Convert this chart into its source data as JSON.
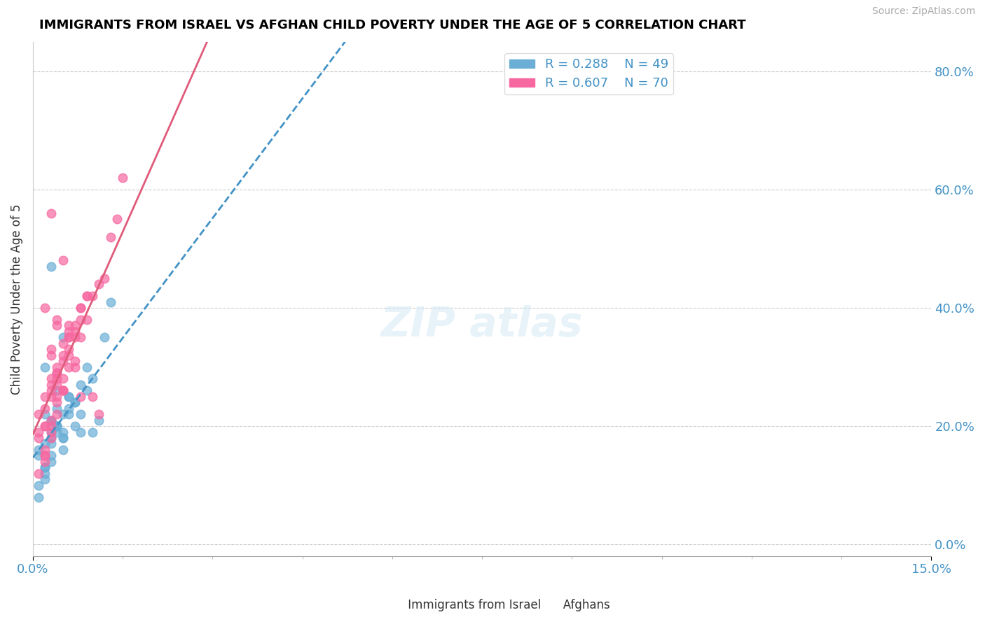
{
  "title": "IMMIGRANTS FROM ISRAEL VS AFGHAN CHILD POVERTY UNDER THE AGE OF 5 CORRELATION CHART",
  "source": "Source: ZipAtlas.com",
  "xlabel": "",
  "ylabel": "Child Poverty Under the Age of 5",
  "xlim": [
    0.0,
    0.15
  ],
  "ylim": [
    -0.02,
    0.85
  ],
  "yticks": [
    0.0,
    0.2,
    0.4,
    0.6,
    0.8
  ],
  "xticks": [
    0.0,
    0.15
  ],
  "legend_R_blue": "R = 0.288",
  "legend_N_blue": "N = 49",
  "legend_R_pink": "R = 0.607",
  "legend_N_pink": "N = 70",
  "blue_color": "#6baed6",
  "pink_color": "#f768a1",
  "blue_line_color": "#4292c6",
  "pink_line_color": "#e05a7a",
  "watermark": "ZIPatlas",
  "israel_x": [
    0.001,
    0.002,
    0.003,
    0.001,
    0.004,
    0.005,
    0.002,
    0.003,
    0.006,
    0.004,
    0.002,
    0.001,
    0.003,
    0.005,
    0.004,
    0.007,
    0.008,
    0.002,
    0.003,
    0.004,
    0.005,
    0.006,
    0.003,
    0.004,
    0.002,
    0.009,
    0.01,
    0.003,
    0.005,
    0.007,
    0.001,
    0.002,
    0.004,
    0.006,
    0.003,
    0.008,
    0.011,
    0.012,
    0.005,
    0.004,
    0.013,
    0.009,
    0.006,
    0.003,
    0.008,
    0.01,
    0.005,
    0.007,
    0.002
  ],
  "israel_y": [
    0.15,
    0.13,
    0.17,
    0.16,
    0.2,
    0.18,
    0.22,
    0.14,
    0.25,
    0.19,
    0.12,
    0.1,
    0.21,
    0.16,
    0.23,
    0.24,
    0.19,
    0.17,
    0.15,
    0.2,
    0.18,
    0.22,
    0.47,
    0.26,
    0.3,
    0.26,
    0.19,
    0.21,
    0.22,
    0.24,
    0.08,
    0.11,
    0.2,
    0.23,
    0.18,
    0.27,
    0.21,
    0.35,
    0.19,
    0.2,
    0.41,
    0.3,
    0.25,
    0.19,
    0.22,
    0.28,
    0.35,
    0.2,
    0.13
  ],
  "afghan_x": [
    0.001,
    0.002,
    0.003,
    0.001,
    0.004,
    0.005,
    0.002,
    0.003,
    0.006,
    0.004,
    0.002,
    0.001,
    0.003,
    0.005,
    0.004,
    0.007,
    0.008,
    0.002,
    0.003,
    0.004,
    0.005,
    0.006,
    0.003,
    0.004,
    0.002,
    0.009,
    0.01,
    0.003,
    0.005,
    0.007,
    0.001,
    0.002,
    0.004,
    0.006,
    0.003,
    0.008,
    0.011,
    0.012,
    0.005,
    0.004,
    0.013,
    0.009,
    0.006,
    0.003,
    0.008,
    0.01,
    0.005,
    0.007,
    0.002,
    0.014,
    0.015,
    0.004,
    0.006,
    0.003,
    0.007,
    0.002,
    0.008,
    0.009,
    0.005,
    0.003,
    0.011,
    0.004,
    0.006,
    0.007,
    0.005,
    0.003,
    0.002,
    0.004,
    0.006,
    0.008
  ],
  "afghan_y": [
    0.22,
    0.25,
    0.28,
    0.18,
    0.3,
    0.32,
    0.2,
    0.27,
    0.35,
    0.29,
    0.15,
    0.19,
    0.33,
    0.26,
    0.38,
    0.3,
    0.25,
    0.23,
    0.21,
    0.27,
    0.31,
    0.36,
    0.56,
    0.37,
    0.4,
    0.38,
    0.25,
    0.32,
    0.34,
    0.37,
    0.12,
    0.16,
    0.29,
    0.35,
    0.25,
    0.4,
    0.22,
    0.45,
    0.26,
    0.28,
    0.52,
    0.42,
    0.37,
    0.26,
    0.35,
    0.42,
    0.48,
    0.31,
    0.2,
    0.55,
    0.62,
    0.24,
    0.3,
    0.2,
    0.35,
    0.14,
    0.38,
    0.42,
    0.26,
    0.18,
    0.44,
    0.22,
    0.32,
    0.36,
    0.28,
    0.19,
    0.15,
    0.25,
    0.33,
    0.4
  ]
}
